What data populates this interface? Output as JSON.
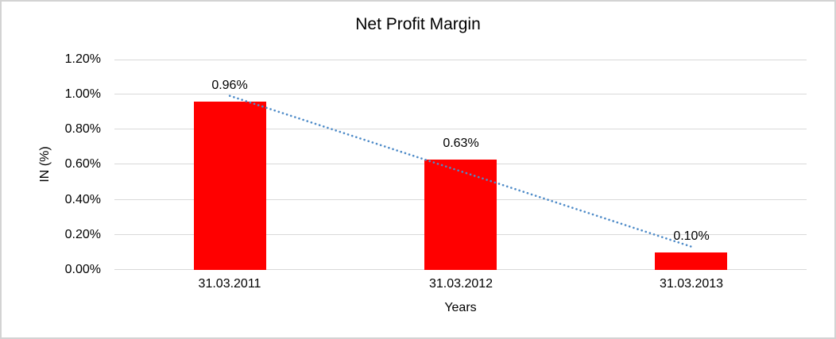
{
  "chart": {
    "title": "Net Profit Margin",
    "y_axis_title": "IN (%)",
    "x_axis_title": "Years"
  },
  "chart_data": {
    "type": "bar",
    "title": "Net Profit Margin",
    "xlabel": "Years",
    "ylabel": "IN (%)",
    "categories": [
      "31.03.2011",
      "31.03.2012",
      "31.03.2013"
    ],
    "values": [
      0.96,
      0.63,
      0.1
    ],
    "data_labels": [
      "0.96%",
      "0.63%",
      "0.10%"
    ],
    "ylim": [
      0,
      1.2
    ],
    "y_tick_step": 0.2,
    "y_tick_labels": [
      "0.00%",
      "0.20%",
      "0.40%",
      "0.60%",
      "0.80%",
      "1.00%",
      "1.20%"
    ],
    "grid": true,
    "legend": false,
    "bar_color": "#FF0000",
    "gridline_color": "#D9D9D9",
    "text_color": "#000000",
    "border_color": "#D3D3D3",
    "background": "#FFFFFF",
    "trendline": {
      "type": "linear",
      "style": "dotted",
      "color": "#4E8BC8",
      "start_value": 0.993,
      "end_value": 0.133
    }
  }
}
